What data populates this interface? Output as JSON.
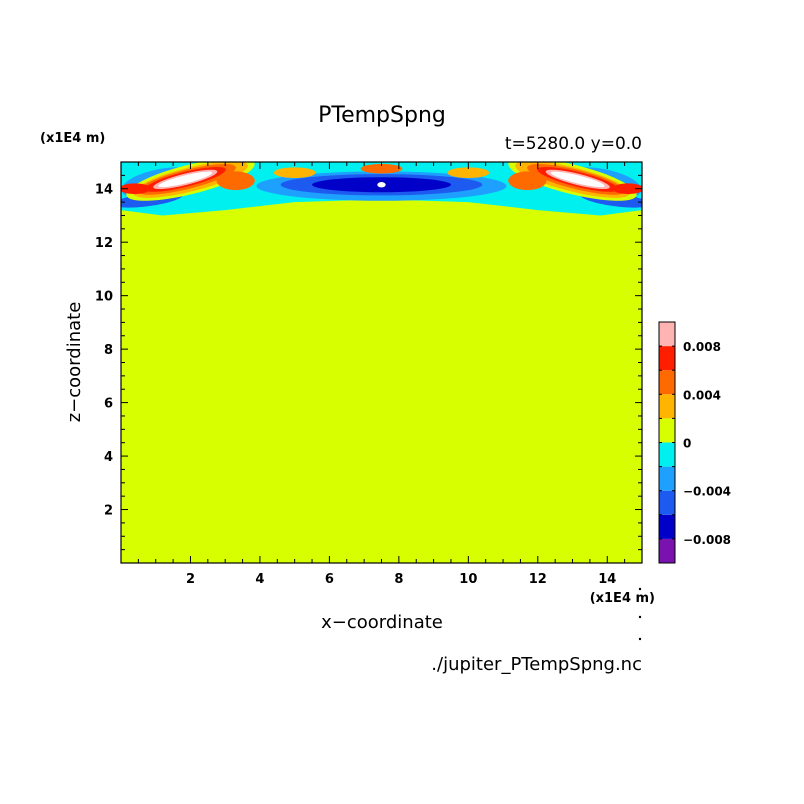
{
  "chart_data": {
    "type": "heatmap",
    "title": "PTempSpng",
    "info": "t=5280.0 y=0.0",
    "xlabel": "x−coordinate",
    "ylabel": "z−coordinate",
    "x_unit_label": "(x1E4 m)",
    "y_unit_label": "(x1E4 m)",
    "source_label": "./jupiter_PTempSpng.nc",
    "xlim": [
      0,
      15
    ],
    "ylim": [
      0,
      15
    ],
    "x_ticks": [
      {
        "value": 2,
        "label": "2"
      },
      {
        "value": 4,
        "label": "4"
      },
      {
        "value": 6,
        "label": "6"
      },
      {
        "value": 8,
        "label": "8"
      },
      {
        "value": 10,
        "label": "10"
      },
      {
        "value": 12,
        "label": "12"
      },
      {
        "value": 14,
        "label": "14"
      }
    ],
    "y_ticks": [
      {
        "value": 2,
        "label": "2"
      },
      {
        "value": 4,
        "label": "4"
      },
      {
        "value": 6,
        "label": "6"
      },
      {
        "value": 8,
        "label": "8"
      },
      {
        "value": 10,
        "label": "10"
      },
      {
        "value": 12,
        "label": "12"
      },
      {
        "value": 14,
        "label": "14"
      }
    ],
    "background_level": 0,
    "colorbar": {
      "range": [
        -0.01,
        0.01
      ],
      "levels": [
        {
          "lo": -0.01,
          "hi": -0.008,
          "color": "#7a12b0"
        },
        {
          "lo": -0.008,
          "hi": -0.006,
          "color": "#0000c8"
        },
        {
          "lo": -0.006,
          "hi": -0.004,
          "color": "#1c5af0"
        },
        {
          "lo": -0.004,
          "hi": -0.002,
          "color": "#1ea0ff"
        },
        {
          "lo": -0.002,
          "hi": 0.0,
          "color": "#00f0f0"
        },
        {
          "lo": 0.0,
          "hi": 0.002,
          "color": "#d7ff00"
        },
        {
          "lo": 0.002,
          "hi": 0.004,
          "color": "#ffb400"
        },
        {
          "lo": 0.004,
          "hi": 0.006,
          "color": "#ff6a00"
        },
        {
          "lo": 0.006,
          "hi": 0.008,
          "color": "#ff1e00"
        },
        {
          "lo": 0.008,
          "hi": 0.01,
          "color": "#ffb4b4"
        }
      ],
      "ticks": [
        {
          "value": 0.008,
          "label": "0.008"
        },
        {
          "value": 0.004,
          "label": "0.004"
        },
        {
          "value": 0,
          "label": "0"
        },
        {
          "value": -0.004,
          "label": "−0.004"
        },
        {
          "value": -0.008,
          "label": "−0.008"
        }
      ]
    },
    "features": [
      {
        "kind": "band",
        "color": "#00f0f0",
        "points": [
          [
            0,
            13.2
          ],
          [
            1.2,
            13.0
          ],
          [
            3,
            13.2
          ],
          [
            5,
            13.5
          ],
          [
            7.5,
            13.6
          ],
          [
            10,
            13.5
          ],
          [
            12,
            13.2
          ],
          [
            13.8,
            13.0
          ],
          [
            15,
            13.2
          ],
          [
            15,
            15
          ],
          [
            0,
            15
          ]
        ]
      },
      {
        "kind": "blob",
        "cx": 1.2,
        "cy": 14.2,
        "rx": 1.2,
        "ry": 0.55,
        "rot": -10,
        "color": "#1ea0ff"
      },
      {
        "kind": "blob",
        "cx": 13.8,
        "cy": 14.2,
        "rx": 1.2,
        "ry": 0.55,
        "rot": 10,
        "color": "#1ea0ff"
      },
      {
        "kind": "blob",
        "cx": 7.5,
        "cy": 14.1,
        "rx": 3.6,
        "ry": 0.55,
        "rot": 0,
        "color": "#1ea0ff"
      },
      {
        "kind": "blob",
        "cx": 7.5,
        "cy": 14.15,
        "rx": 2.9,
        "ry": 0.4,
        "rot": 0,
        "color": "#1c5af0"
      },
      {
        "kind": "blob",
        "cx": 7.5,
        "cy": 14.15,
        "rx": 2.0,
        "ry": 0.28,
        "rot": 0,
        "color": "#0000c8"
      },
      {
        "kind": "blob",
        "cx": 0.8,
        "cy": 13.6,
        "rx": 1.0,
        "ry": 0.25,
        "rot": -8,
        "color": "#1c5af0"
      },
      {
        "kind": "blob",
        "cx": 14.2,
        "cy": 13.6,
        "rx": 1.0,
        "ry": 0.25,
        "rot": 8,
        "color": "#1c5af0"
      },
      {
        "kind": "blob",
        "cx": 2.0,
        "cy": 14.35,
        "rx": 1.9,
        "ry": 0.55,
        "rot": -14,
        "color": "#d7ff00"
      },
      {
        "kind": "blob",
        "cx": 13.0,
        "cy": 14.35,
        "rx": 1.9,
        "ry": 0.55,
        "rot": 14,
        "color": "#d7ff00"
      },
      {
        "kind": "blob",
        "cx": 2.0,
        "cy": 14.35,
        "rx": 1.7,
        "ry": 0.45,
        "rot": -14,
        "color": "#ffb400"
      },
      {
        "kind": "blob",
        "cx": 13.0,
        "cy": 14.35,
        "rx": 1.7,
        "ry": 0.45,
        "rot": 14,
        "color": "#ffb400"
      },
      {
        "kind": "blob",
        "cx": 1.9,
        "cy": 14.35,
        "rx": 1.45,
        "ry": 0.36,
        "rot": -14,
        "color": "#ff6a00"
      },
      {
        "kind": "blob",
        "cx": 13.1,
        "cy": 14.35,
        "rx": 1.45,
        "ry": 0.36,
        "rot": 14,
        "color": "#ff6a00"
      },
      {
        "kind": "blob",
        "cx": 1.85,
        "cy": 14.35,
        "rx": 1.2,
        "ry": 0.28,
        "rot": -14,
        "color": "#ff1e00"
      },
      {
        "kind": "blob",
        "cx": 13.15,
        "cy": 14.35,
        "rx": 1.2,
        "ry": 0.28,
        "rot": 14,
        "color": "#ff1e00"
      },
      {
        "kind": "blob",
        "cx": 1.85,
        "cy": 14.35,
        "rx": 0.95,
        "ry": 0.21,
        "rot": -14,
        "color": "#ffb4b4"
      },
      {
        "kind": "blob",
        "cx": 13.15,
        "cy": 14.35,
        "rx": 0.95,
        "ry": 0.21,
        "rot": 14,
        "color": "#ffb4b4"
      },
      {
        "kind": "blob",
        "cx": 1.85,
        "cy": 14.35,
        "rx": 0.8,
        "ry": 0.15,
        "rot": -14,
        "color": "#ffffff"
      },
      {
        "kind": "blob",
        "cx": 13.15,
        "cy": 14.35,
        "rx": 0.8,
        "ry": 0.15,
        "rot": 14,
        "color": "#ffffff"
      },
      {
        "kind": "blob",
        "cx": 3.3,
        "cy": 14.3,
        "rx": 0.55,
        "ry": 0.35,
        "rot": 0,
        "color": "#ff6a00"
      },
      {
        "kind": "blob",
        "cx": 11.7,
        "cy": 14.3,
        "rx": 0.55,
        "ry": 0.35,
        "rot": 0,
        "color": "#ff6a00"
      },
      {
        "kind": "blob",
        "cx": 0.4,
        "cy": 14.0,
        "rx": 0.45,
        "ry": 0.2,
        "rot": 0,
        "color": "#ff1e00"
      },
      {
        "kind": "blob",
        "cx": 14.6,
        "cy": 14.0,
        "rx": 0.45,
        "ry": 0.2,
        "rot": 0,
        "color": "#ff1e00"
      },
      {
        "kind": "blob",
        "cx": 5.0,
        "cy": 14.6,
        "rx": 0.6,
        "ry": 0.2,
        "rot": 0,
        "color": "#ffb400"
      },
      {
        "kind": "blob",
        "cx": 10.0,
        "cy": 14.6,
        "rx": 0.6,
        "ry": 0.2,
        "rot": 0,
        "color": "#ffb400"
      },
      {
        "kind": "blob",
        "cx": 7.5,
        "cy": 14.75,
        "rx": 0.6,
        "ry": 0.18,
        "rot": 0,
        "color": "#ff6a00"
      },
      {
        "kind": "blob",
        "cx": 7.5,
        "cy": 14.15,
        "rx": 0.12,
        "ry": 0.1,
        "rot": 0,
        "color": "#ffffff"
      }
    ]
  }
}
